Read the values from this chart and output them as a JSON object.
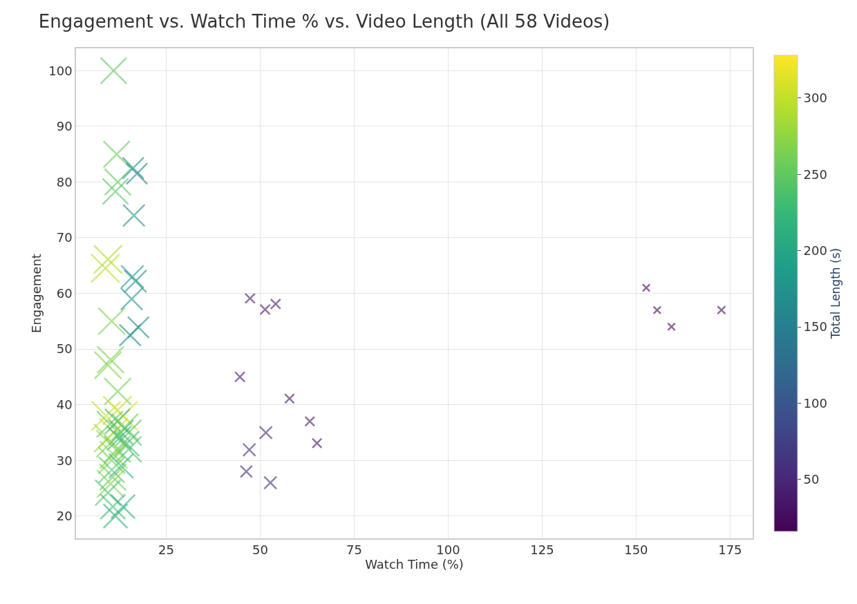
{
  "chart_data": {
    "type": "bubble",
    "title": "Engagement vs. Watch Time % vs. Video Length (All 58 Videos)",
    "xlabel": "Watch Time (%)",
    "ylabel": "Engagement",
    "clabel": "Total Length (s)",
    "x": [
      11.0,
      11.8,
      16.2,
      17.2,
      12.1,
      11.5,
      16.4,
      9.5,
      8.8,
      16.0,
      16.8,
      15.8,
      17.6,
      15.4,
      10.5,
      10.2,
      9.5,
      12.1,
      9.0,
      12.0,
      13.5,
      10.0,
      12.0,
      14.0,
      11.0,
      13.0,
      15.0,
      9.5,
      12.5,
      14.5,
      10.0,
      12.0,
      15.0,
      11.0,
      10.5,
      13.0,
      10.5,
      10.8,
      10.2,
      9.5,
      10.8,
      13.5,
      11.5,
      47.3,
      51.3,
      54.1,
      44.6,
      57.8,
      63.2,
      65.1,
      51.5,
      47.1,
      46.3,
      52.7,
      152.7,
      155.6,
      159.4,
      172.7
    ],
    "values": [
      100,
      85,
      82.5,
      81.5,
      80,
      78.3,
      74,
      66.1,
      64.5,
      63,
      62.2,
      59,
      53.9,
      52.5,
      55,
      48.1,
      47.1,
      42.4,
      38,
      39,
      38,
      36.5,
      37,
      36,
      35,
      35,
      35,
      34,
      34,
      33,
      33,
      32,
      32,
      31,
      30,
      29,
      28.3,
      27,
      25.8,
      24.2,
      21.7,
      21.7,
      20,
      59.1,
      57.1,
      58.1,
      45,
      41.1,
      37,
      33.1,
      35,
      31.9,
      28,
      26,
      61,
      57,
      54,
      57
    ],
    "cvalues": [
      250,
      255,
      165,
      160,
      250,
      245,
      170,
      290,
      295,
      185,
      180,
      175,
      165,
      170,
      265,
      265,
      270,
      260,
      305,
      300,
      310,
      250,
      230,
      260,
      300,
      220,
      240,
      280,
      215,
      230,
      270,
      250,
      240,
      275,
      260,
      220,
      245,
      255,
      270,
      240,
      230,
      210,
      215,
      35,
      35,
      35,
      35,
      30,
      30,
      30,
      55,
      55,
      50,
      55,
      20,
      20,
      20,
      22
    ],
    "sizes": [
      0.81,
      0.82,
      0.53,
      0.52,
      0.81,
      0.79,
      0.55,
      0.94,
      0.95,
      0.6,
      0.58,
      0.56,
      0.53,
      0.55,
      0.85,
      0.85,
      0.87,
      0.84,
      0.98,
      0.97,
      1,
      0.81,
      0.74,
      0.84,
      0.97,
      0.71,
      0.77,
      0.9,
      0.69,
      0.74,
      0.87,
      0.81,
      0.77,
      0.89,
      0.84,
      0.71,
      0.79,
      0.82,
      0.87,
      0.77,
      0.74,
      0.68,
      0.69,
      0.11,
      0.11,
      0.11,
      0.11,
      0.1,
      0.1,
      0.1,
      0.18,
      0.18,
      0.16,
      0.18,
      0.06,
      0.06,
      0.06,
      0.07
    ],
    "xlim": [
      1,
      181
    ],
    "xticks": [
      25,
      50,
      75,
      100,
      125,
      150,
      175
    ],
    "ylim": [
      16,
      104
    ],
    "yticks": [
      20,
      30,
      40,
      50,
      60,
      70,
      80,
      90,
      100
    ],
    "clim": [
      16,
      328
    ],
    "cticks": [
      50,
      100,
      150,
      200,
      250,
      300
    ],
    "marker": "cross",
    "grid": true
  }
}
